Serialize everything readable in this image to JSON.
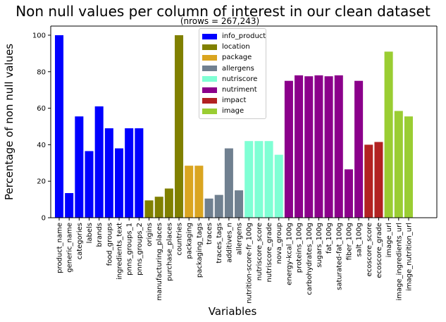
{
  "chart_data": {
    "type": "bar",
    "title": "Non null values per column of interest in our clean dataset",
    "subtitle": "(nrows = 267,243)",
    "xlabel": "Variables",
    "ylabel": "Percentage of non null values",
    "ylim": [
      0,
      105
    ],
    "yticks": [
      0,
      20,
      40,
      60,
      80,
      100
    ],
    "grid": false,
    "legend_position": "top-center",
    "groups": [
      {
        "name": "info_product",
        "color": "#0000ff"
      },
      {
        "name": "location",
        "color": "#808000"
      },
      {
        "name": "package",
        "color": "#daa520"
      },
      {
        "name": "allergens",
        "color": "#708090"
      },
      {
        "name": "nutriscore",
        "color": "#7fffd4"
      },
      {
        "name": "nutriment",
        "color": "#8b008b"
      },
      {
        "name": "impact",
        "color": "#b22222"
      },
      {
        "name": "image",
        "color": "#9acd32"
      }
    ],
    "categories": [
      "product_name",
      "generic_name",
      "categories",
      "labels",
      "brands",
      "food_groups",
      "ingredients_text",
      "pnns_groups_1",
      "pnns_groups_2",
      "origins",
      "manufacturing_places",
      "purchase_places",
      "countries",
      "packaging",
      "packaging_tags",
      "traces",
      "traces_tags",
      "additives_n",
      "allergens",
      "nutrition-score-fr_100g",
      "nutriscore_score",
      "nutriscore_grade",
      "nova_group",
      "energy-kcal_100g",
      "proteins_100g",
      "carbohydrates_100g",
      "sugars_100g",
      "fat_100g",
      "saturated-fat_100g",
      "fiber_100g",
      "salt_100g",
      "ecoscore_score",
      "ecoscore_grade",
      "image_url",
      "image_ingredients_url",
      "image_nutrition_url"
    ],
    "values": [
      100,
      13.5,
      55.5,
      36.5,
      61,
      49,
      38,
      49,
      49,
      9.5,
      11.5,
      16,
      100,
      28.5,
      28.5,
      10.5,
      12.5,
      38,
      15,
      42,
      42,
      42,
      34.5,
      75,
      78,
      77.5,
      78,
      77.5,
      78,
      26.5,
      75,
      40,
      41.5,
      91,
      58.5,
      55.5
    ],
    "group_index": [
      0,
      0,
      0,
      0,
      0,
      0,
      0,
      0,
      0,
      1,
      1,
      1,
      1,
      2,
      2,
      3,
      3,
      3,
      3,
      4,
      4,
      4,
      4,
      5,
      5,
      5,
      5,
      5,
      5,
      5,
      5,
      6,
      6,
      7,
      7,
      7
    ]
  }
}
